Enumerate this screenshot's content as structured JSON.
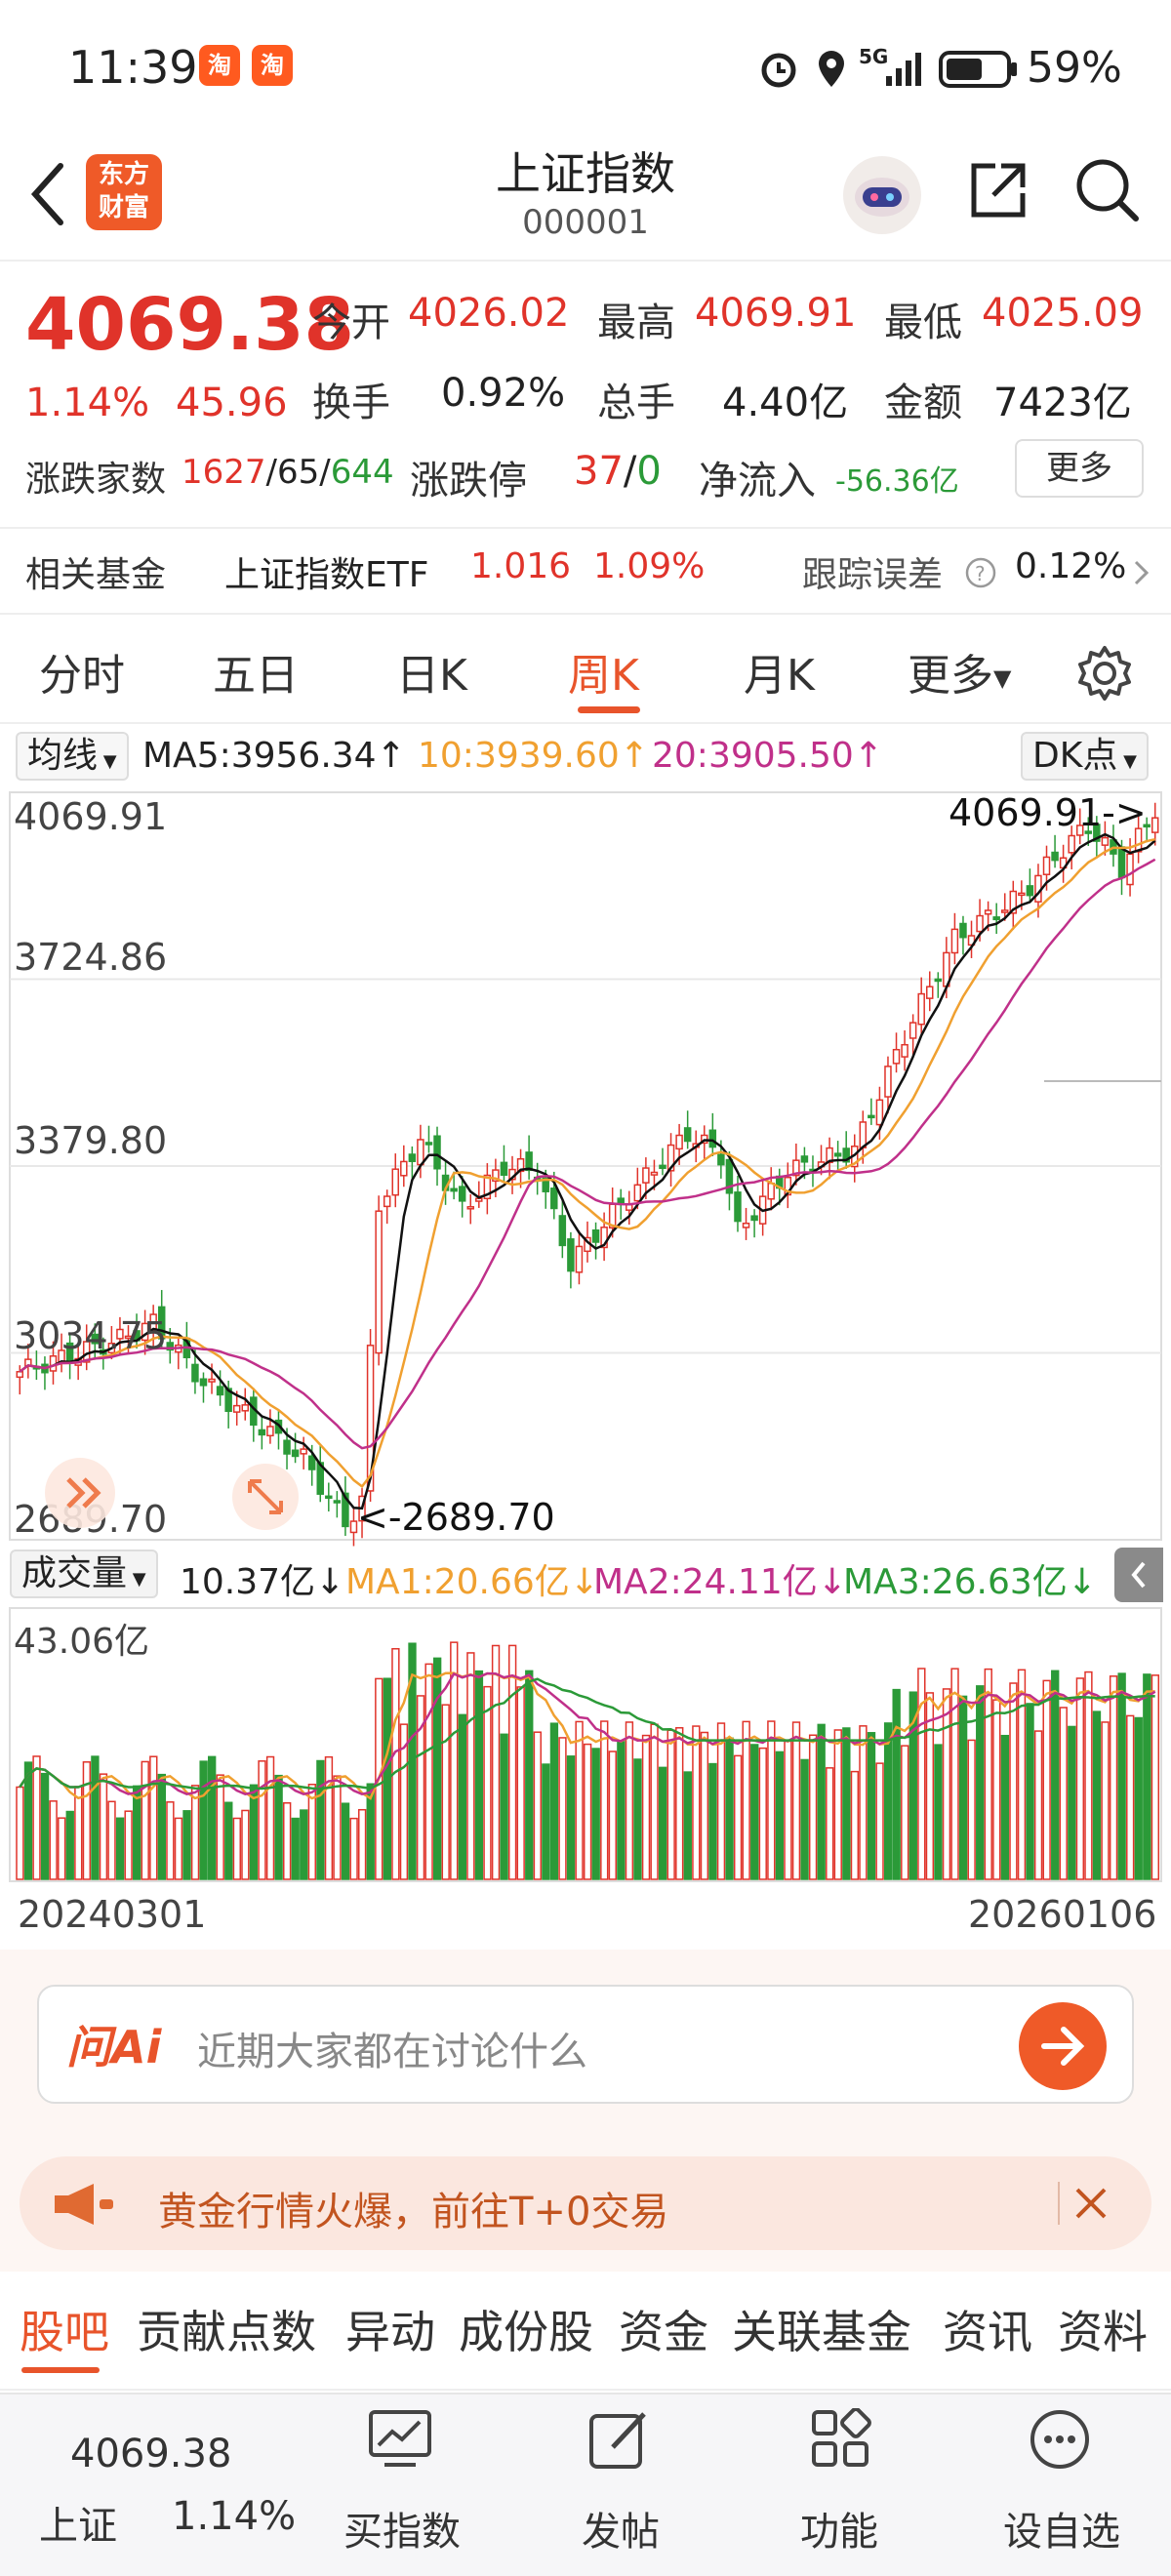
{
  "status_bar": {
    "time": "11:39",
    "taobao_badge": "淘",
    "network": "5G",
    "battery": "59%"
  },
  "header": {
    "logo_line1": "东方",
    "logo_line2": "财富",
    "title": "上证指数",
    "code": "000001"
  },
  "quote": {
    "price": "4069.38",
    "change_pct": "1.14%",
    "change_pts": "45.96",
    "open_label": "今开",
    "open": "4026.02",
    "high_label": "最高",
    "high": "4069.91",
    "low_label": "最低",
    "low": "4025.09",
    "turnover_label": "换手",
    "turnover": "0.92%",
    "volume_label": "总手",
    "volume": "4.40亿",
    "amount_label": "金额",
    "amount": "7423亿",
    "breadth_label": "涨跌家数",
    "adv": "1627",
    "sep1": "/",
    "flat": "65",
    "sep2": "/",
    "dec": "644",
    "limit_label": "涨跌停",
    "limit_up": "37",
    "limit_sep": "/",
    "limit_down": "0",
    "netflow_label": "净流入",
    "netflow": "-56.36亿",
    "more": "更多"
  },
  "fund": {
    "label": "相关基金",
    "name": "上证指数ETF",
    "price": "1.016",
    "pct": "1.09%",
    "err_label": "跟踪误差",
    "err": "0.12%"
  },
  "tabs": [
    "分时",
    "五日",
    "日K",
    "周K",
    "月K",
    "更多"
  ],
  "active_tab": "周K",
  "ma": {
    "selector": "均线",
    "ma5": "MA5:3956.34",
    "ma10": "10:3939.60",
    "ma20": "20:3905.50",
    "dk": "DK点"
  },
  "chart_data": {
    "type": "candlestick",
    "y_ticks": [
      "4069.91",
      "3724.86",
      "3379.80",
      "3034.75",
      "2689.70"
    ],
    "ylim": [
      2689.7,
      4069.91
    ],
    "max_label": "4069.91->",
    "min_label": "<-2689.70",
    "x_start": "20240301",
    "x_end": "20260106",
    "colors": {
      "up": "#e0332a",
      "down": "#2b9a38",
      "ma5": "#111111",
      "ma10": "#f0a030",
      "ma20": "#c0308a"
    }
  },
  "volume": {
    "selector": "成交量",
    "value": "10.37亿",
    "ma1": "MA1:20.66亿",
    "ma2": "MA2:24.11亿",
    "ma3": "MA3:26.63亿",
    "max": "43.06亿"
  },
  "ask": {
    "logo": "问Ai",
    "placeholder": "近期大家都在讨论什么"
  },
  "banner": {
    "text": "黄金行情火爆，前往T+0交易"
  },
  "subtabs": [
    "股吧",
    "贡献点数",
    "异动",
    "成份股",
    "资金",
    "关联基金",
    "资讯",
    "资料"
  ],
  "footer": {
    "index_price": "4069.38",
    "index_name": "上证",
    "index_pct": "1.14%",
    "buy": "买指数",
    "post": "发帖",
    "func": "功能",
    "watch": "设自选"
  }
}
